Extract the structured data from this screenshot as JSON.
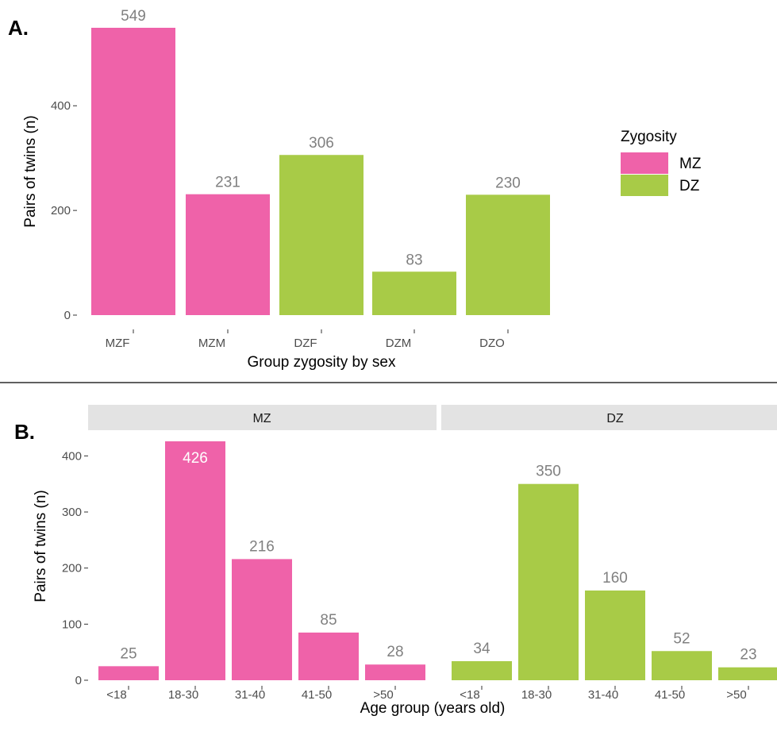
{
  "panel_a": {
    "label": "A.",
    "legend": {
      "title": "Zygosity",
      "items": [
        {
          "label": "MZ",
          "color": "#EF62A9"
        },
        {
          "label": "DZ",
          "color": "#A8CB47"
        }
      ]
    }
  },
  "panel_b": {
    "label": "B.",
    "facets": [
      "MZ",
      "DZ"
    ]
  },
  "colors": {
    "MZ": "#EF62A9",
    "DZ": "#A8CB47",
    "value_label": "#808080",
    "value_label_inside": "#ffffff"
  },
  "chart_data": [
    {
      "type": "bar",
      "categories": [
        "MZF",
        "MZM",
        "DZF",
        "DZM",
        "DZO"
      ],
      "values": [
        549,
        231,
        306,
        83,
        230
      ],
      "zygosity": [
        "MZ",
        "MZ",
        "DZ",
        "DZ",
        "DZ"
      ],
      "xlabel": "Group zygosity by sex",
      "ylabel": "Pairs of twins (n)",
      "yticks": [
        0,
        200,
        400
      ],
      "ylim": [
        0,
        549
      ],
      "legend_position": "right"
    },
    {
      "type": "bar",
      "xlabel": "Age group (years old)",
      "ylabel": "Pairs of twins (n)",
      "yticks": [
        0,
        100,
        200,
        300,
        400
      ],
      "ylim": [
        0,
        426
      ],
      "categories": [
        "<18",
        "18-30",
        "31-40",
        "41-50",
        ">50"
      ],
      "series": [
        {
          "name": "MZ",
          "values": [
            25,
            426,
            216,
            85,
            28
          ]
        },
        {
          "name": "DZ",
          "values": [
            34,
            350,
            160,
            52,
            23
          ]
        }
      ]
    }
  ]
}
